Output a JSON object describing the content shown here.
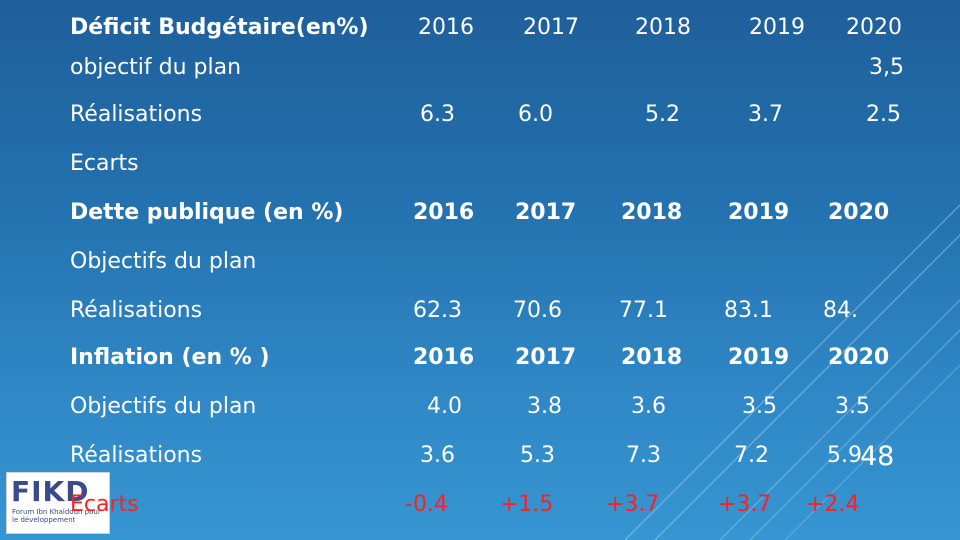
{
  "deficit": {
    "label": "Déficit Budgétaire(en%)",
    "years": [
      "2016",
      "2017",
      "2018",
      "2019",
      "2020"
    ],
    "objective_label": "objectif du plan",
    "objective_2020": "3,5",
    "realisations_label": "Réalisations",
    "realisations": [
      "6.3",
      "6.0",
      "5.2",
      "3.7",
      "2.5"
    ],
    "ecarts_label": "Ecarts"
  },
  "dette": {
    "label": "Dette publique (en %)",
    "years": [
      "2016",
      "2017",
      "2018",
      "2019",
      "2020"
    ],
    "objective_label": "Objectifs du plan",
    "realisations_label": "Réalisations",
    "realisations": [
      "62.3",
      "70.6",
      "77.1",
      "83.1",
      "84."
    ]
  },
  "inflation": {
    "label": "Inflation (en % )",
    "years": [
      "2016",
      "2017",
      "2018",
      "2019",
      "2020"
    ],
    "objective_label": "Objectifs du plan",
    "objectives": [
      "4.0",
      "3.8",
      "3.6",
      "3.5",
      "3.5"
    ],
    "realisations_label": "Réalisations",
    "realisations": [
      "3.6",
      "5.3",
      "7.3",
      "7.2",
      "5.9"
    ],
    "ecarts_label": "Ecarts",
    "ecarts": [
      "-0.4",
      "+1.5",
      "+3.7",
      "+3.7",
      "+2.4"
    ]
  },
  "page_number": "48",
  "logo": {
    "letters": "FIKD",
    "subtitle": "Forum Ibn Khaldoun pour le développement"
  },
  "colors": {
    "text": "#ffffff",
    "ecarts_red": "#ff1f1f",
    "background_top": "#1e5f9a",
    "background_bottom": "#3696d2"
  }
}
